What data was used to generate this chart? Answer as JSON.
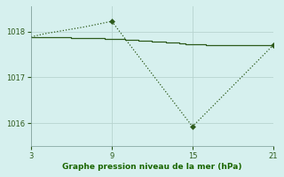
{
  "line_solid_x": [
    3,
    3.5,
    4,
    4.5,
    5,
    5.5,
    6,
    6.5,
    7,
    7.5,
    8,
    8.5,
    9,
    9.5,
    10,
    10.5,
    11,
    11.5,
    12,
    12.5,
    13,
    13.5,
    14,
    14.5,
    15,
    15.5,
    16,
    16.5,
    17,
    17.5,
    18,
    18.5,
    19,
    19.5,
    20,
    20.5,
    21
  ],
  "line_solid_y": [
    1017.88,
    1017.88,
    1017.88,
    1017.88,
    1017.87,
    1017.87,
    1017.86,
    1017.86,
    1017.85,
    1017.85,
    1017.85,
    1017.84,
    1017.84,
    1017.83,
    1017.82,
    1017.81,
    1017.8,
    1017.79,
    1017.78,
    1017.77,
    1017.76,
    1017.75,
    1017.74,
    1017.73,
    1017.72,
    1017.72,
    1017.71,
    1017.71,
    1017.7,
    1017.7,
    1017.7,
    1017.7,
    1017.7,
    1017.7,
    1017.7,
    1017.7,
    1017.7
  ],
  "line_dotted_x": [
    3,
    4,
    5,
    6,
    7,
    8,
    9,
    15,
    21
  ],
  "line_dotted_y": [
    1017.88,
    1017.95,
    1018.0,
    1018.05,
    1018.1,
    1018.16,
    1018.22,
    1015.93,
    1017.7
  ],
  "marker1_x": 9,
  "marker1_y": 1018.22,
  "marker2_x": 15,
  "marker2_y": 1015.93,
  "marker3_x": 21,
  "marker3_y": 1017.7,
  "xlim": [
    3,
    21
  ],
  "ylim": [
    1015.5,
    1018.55
  ],
  "xticks": [
    3,
    9,
    15,
    21
  ],
  "yticks": [
    1016,
    1017,
    1018
  ],
  "xlabel": "Graphe pression niveau de la mer (hPa)",
  "line_color": "#2d5a1b",
  "bg_color": "#d6f0ee",
  "grid_color": "#b8d4d0",
  "tick_color": "#2d5a1b",
  "label_color": "#1a6600"
}
